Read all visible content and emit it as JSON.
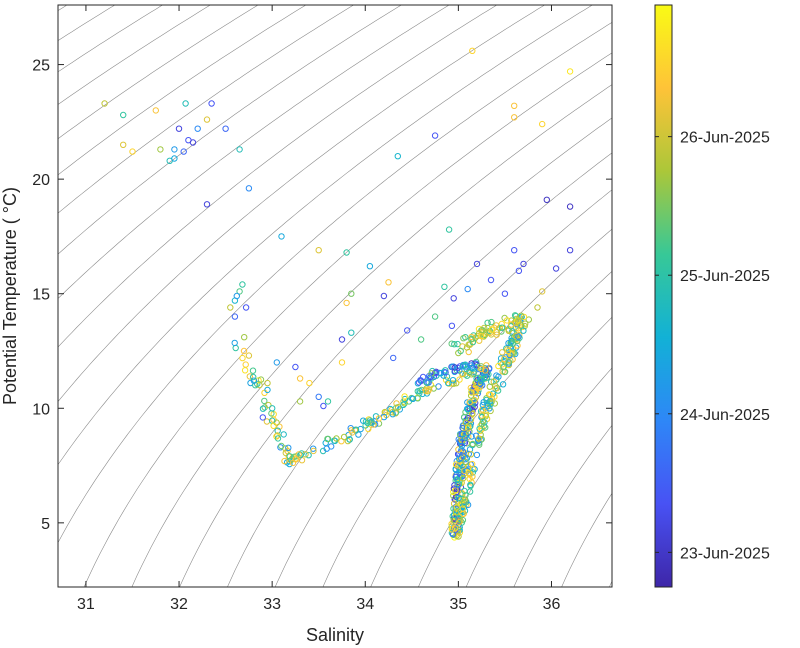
{
  "chart_data": {
    "type": "scatter",
    "title": "",
    "xlabel": "Salinity",
    "ylabel": "Potential Temperature ( °C)",
    "xlim": [
      30.7,
      36.65
    ],
    "ylim": [
      2.2,
      27.6
    ],
    "xticks": [
      31,
      32,
      33,
      34,
      35,
      36
    ],
    "yticks": [
      5,
      10,
      15,
      20,
      25
    ],
    "grid": false,
    "background": "density contour lines (isopycnals), one highlighted",
    "marker": "open circle",
    "colorbar": {
      "label": "",
      "placement": "right",
      "colormap": "parula",
      "range_days": [
        "2025-06-22",
        "2025-06-27"
      ],
      "ticks": [
        {
          "date": "2025-06-23",
          "label": "23-Jun-2025"
        },
        {
          "date": "2025-06-24",
          "label": "24-Jun-2025"
        },
        {
          "date": "2025-06-25",
          "label": "25-Jun-2025"
        },
        {
          "date": "2025-06-26",
          "label": "26-Jun-2025"
        }
      ]
    },
    "scattered_points": [
      {
        "s": 31.2,
        "t": 23.3,
        "c": 0.75
      },
      {
        "s": 31.4,
        "t": 22.8,
        "c": 0.55
      },
      {
        "s": 31.4,
        "t": 21.5,
        "c": 0.8
      },
      {
        "s": 31.5,
        "t": 21.2,
        "c": 0.9
      },
      {
        "s": 31.75,
        "t": 23.0,
        "c": 0.85
      },
      {
        "s": 31.8,
        "t": 21.3,
        "c": 0.7
      },
      {
        "s": 31.9,
        "t": 20.8,
        "c": 0.5
      },
      {
        "s": 31.95,
        "t": 20.9,
        "c": 0.4
      },
      {
        "s": 31.95,
        "t": 21.3,
        "c": 0.35
      },
      {
        "s": 32.0,
        "t": 22.2,
        "c": 0.1
      },
      {
        "s": 32.05,
        "t": 21.2,
        "c": 0.2
      },
      {
        "s": 32.1,
        "t": 21.7,
        "c": 0.15
      },
      {
        "s": 32.07,
        "t": 23.3,
        "c": 0.5
      },
      {
        "s": 32.15,
        "t": 21.6,
        "c": 0.1
      },
      {
        "s": 32.2,
        "t": 22.2,
        "c": 0.3
      },
      {
        "s": 32.3,
        "t": 22.6,
        "c": 0.8
      },
      {
        "s": 32.3,
        "t": 18.9,
        "c": 0.1
      },
      {
        "s": 32.35,
        "t": 23.3,
        "c": 0.15
      },
      {
        "s": 32.5,
        "t": 22.2,
        "c": 0.2
      },
      {
        "s": 32.65,
        "t": 21.3,
        "c": 0.5
      },
      {
        "s": 32.75,
        "t": 19.6,
        "c": 0.3
      },
      {
        "s": 32.55,
        "t": 14.4,
        "c": 0.75
      },
      {
        "s": 32.6,
        "t": 14.7,
        "c": 0.45
      },
      {
        "s": 32.65,
        "t": 15.1,
        "c": 0.6
      },
      {
        "s": 32.62,
        "t": 14.9,
        "c": 0.35
      },
      {
        "s": 32.6,
        "t": 14.0,
        "c": 0.2
      },
      {
        "s": 32.68,
        "t": 15.4,
        "c": 0.55
      },
      {
        "s": 32.72,
        "t": 14.4,
        "c": 0.15
      },
      {
        "s": 32.7,
        "t": 13.1,
        "c": 0.7
      },
      {
        "s": 32.75,
        "t": 12.3,
        "c": 0.8
      },
      {
        "s": 33.1,
        "t": 17.5,
        "c": 0.4
      },
      {
        "s": 33.05,
        "t": 12.0,
        "c": 0.35
      },
      {
        "s": 32.95,
        "t": 10.8,
        "c": 0.4
      },
      {
        "s": 32.95,
        "t": 11.1,
        "c": 0.75
      },
      {
        "s": 32.9,
        "t": 9.6,
        "c": 0.15
      },
      {
        "s": 33.0,
        "t": 10.0,
        "c": 0.5
      },
      {
        "s": 33.25,
        "t": 11.8,
        "c": 0.15
      },
      {
        "s": 33.3,
        "t": 11.3,
        "c": 0.85
      },
      {
        "s": 33.4,
        "t": 11.1,
        "c": 0.9
      },
      {
        "s": 33.3,
        "t": 10.3,
        "c": 0.7
      },
      {
        "s": 33.5,
        "t": 10.5,
        "c": 0.25
      },
      {
        "s": 33.55,
        "t": 10.1,
        "c": 0.15
      },
      {
        "s": 33.6,
        "t": 10.3,
        "c": 0.55
      },
      {
        "s": 33.5,
        "t": 16.9,
        "c": 0.8
      },
      {
        "s": 33.8,
        "t": 16.8,
        "c": 0.55
      },
      {
        "s": 33.75,
        "t": 13.0,
        "c": 0.1
      },
      {
        "s": 33.75,
        "t": 12.0,
        "c": 0.9
      },
      {
        "s": 33.85,
        "t": 13.3,
        "c": 0.5
      },
      {
        "s": 33.8,
        "t": 14.6,
        "c": 0.85
      },
      {
        "s": 33.85,
        "t": 15.0,
        "c": 0.65
      },
      {
        "s": 34.05,
        "t": 16.2,
        "c": 0.4
      },
      {
        "s": 34.2,
        "t": 14.9,
        "c": 0.1
      },
      {
        "s": 34.25,
        "t": 15.5,
        "c": 0.85
      },
      {
        "s": 34.35,
        "t": 21.0,
        "c": 0.45
      },
      {
        "s": 34.3,
        "t": 12.2,
        "c": 0.2
      },
      {
        "s": 34.45,
        "t": 13.4,
        "c": 0.15
      },
      {
        "s": 34.6,
        "t": 13.0,
        "c": 0.6
      },
      {
        "s": 34.75,
        "t": 14.0,
        "c": 0.6
      },
      {
        "s": 34.75,
        "t": 21.9,
        "c": 0.15
      },
      {
        "s": 34.85,
        "t": 15.3,
        "c": 0.55
      },
      {
        "s": 34.9,
        "t": 17.8,
        "c": 0.55
      },
      {
        "s": 34.95,
        "t": 14.8,
        "c": 0.1
      },
      {
        "s": 34.93,
        "t": 13.6,
        "c": 0.15
      },
      {
        "s": 35.1,
        "t": 15.2,
        "c": 0.3
      },
      {
        "s": 35.2,
        "t": 16.3,
        "c": 0.1
      },
      {
        "s": 35.15,
        "t": 25.6,
        "c": 0.9
      },
      {
        "s": 35.35,
        "t": 15.6,
        "c": 0.15
      },
      {
        "s": 35.5,
        "t": 15.0,
        "c": 0.15
      },
      {
        "s": 35.6,
        "t": 16.9,
        "c": 0.15
      },
      {
        "s": 35.65,
        "t": 16.0,
        "c": 0.15
      },
      {
        "s": 35.7,
        "t": 16.3,
        "c": 0.1
      },
      {
        "s": 35.6,
        "t": 23.2,
        "c": 0.85
      },
      {
        "s": 35.6,
        "t": 22.7,
        "c": 0.85
      },
      {
        "s": 35.9,
        "t": 22.4,
        "c": 0.9
      },
      {
        "s": 35.95,
        "t": 19.1,
        "c": 0.05
      },
      {
        "s": 36.05,
        "t": 16.1,
        "c": 0.1
      },
      {
        "s": 36.2,
        "t": 18.8,
        "c": 0.05
      },
      {
        "s": 36.2,
        "t": 16.9,
        "c": 0.1
      },
      {
        "s": 36.2,
        "t": 24.7,
        "c": 0.95
      },
      {
        "s": 35.85,
        "t": 14.4,
        "c": 0.75
      },
      {
        "s": 35.9,
        "t": 15.1,
        "c": 0.8
      }
    ],
    "water_mass_paths": [
      {
        "name": "",
        "c0": 0.3,
        "c1": 0.95,
        "spread": 0.06,
        "count": 160,
        "path": [
          [
            32.6,
            13.0
          ],
          [
            32.9,
            10.5
          ],
          [
            33.1,
            8.5
          ],
          [
            33.2,
            7.7
          ],
          [
            33.5,
            8.2
          ],
          [
            33.9,
            9.0
          ],
          [
            34.3,
            9.9
          ],
          [
            34.6,
            10.7
          ],
          [
            34.9,
            11.2
          ],
          [
            35.2,
            11.6
          ]
        ]
      },
      {
        "name": "",
        "c0": 0.05,
        "c1": 0.7,
        "spread": 0.05,
        "count": 60,
        "path": [
          [
            34.6,
            11.2
          ],
          [
            34.9,
            11.7
          ],
          [
            35.2,
            11.9
          ],
          [
            35.35,
            11.5
          ]
        ]
      },
      {
        "name": "",
        "c0": 0.05,
        "c1": 1.0,
        "spread": 0.05,
        "count": 260,
        "path": [
          [
            35.3,
            11.8
          ],
          [
            35.15,
            10.5
          ],
          [
            35.05,
            8.5
          ],
          [
            35.0,
            6.5
          ],
          [
            34.97,
            5.2
          ],
          [
            34.97,
            4.3
          ]
        ]
      },
      {
        "name": "",
        "c0": 0.3,
        "c1": 0.95,
        "spread": 0.06,
        "count": 200,
        "path": [
          [
            34.98,
            4.6
          ],
          [
            35.05,
            6.0
          ],
          [
            35.15,
            8.0
          ],
          [
            35.3,
            10.0
          ],
          [
            35.5,
            12.0
          ],
          [
            35.7,
            14.0
          ]
        ]
      },
      {
        "name": "",
        "c0": 0.55,
        "c1": 0.95,
        "spread": 0.1,
        "count": 70,
        "path": [
          [
            35.0,
            12.5
          ],
          [
            35.2,
            13.2
          ],
          [
            35.45,
            13.6
          ],
          [
            35.7,
            13.8
          ]
        ]
      }
    ]
  }
}
